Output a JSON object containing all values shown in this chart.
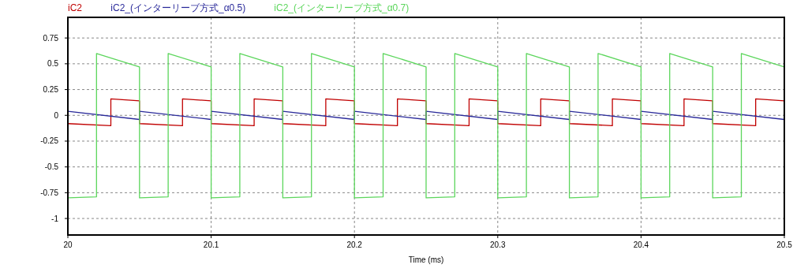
{
  "chart_data": {
    "type": "line",
    "xlabel": "Time (ms)",
    "xlim": [
      20,
      20.5
    ],
    "xticks": [
      20,
      20.1,
      20.2,
      20.3,
      20.4,
      20.5
    ],
    "ylim": [
      -1.16,
      0.95
    ],
    "yticks": [
      0.75,
      0.5,
      0.25,
      0,
      -0.25,
      -0.5,
      -0.75,
      -1
    ],
    "grid": true,
    "legend": "top left",
    "series": [
      {
        "name": "iC2",
        "color": "#c00000",
        "x": [
          20,
          20.03,
          20.03,
          20.05,
          20.05,
          20.08,
          20.08,
          20.1,
          20.1,
          20.13,
          20.13,
          20.15,
          20.15,
          20.18,
          20.18,
          20.2,
          20.2,
          20.23,
          20.23,
          20.25,
          20.25,
          20.28,
          20.28,
          20.3,
          20.3,
          20.33,
          20.33,
          20.35,
          20.35,
          20.38,
          20.38,
          20.4,
          20.4,
          20.43,
          20.43,
          20.45,
          20.45,
          20.48,
          20.48,
          20.5
        ],
        "values": [
          -0.08,
          -0.1,
          0.16,
          0.14,
          -0.08,
          -0.1,
          0.16,
          0.14,
          -0.08,
          -0.1,
          0.16,
          0.14,
          -0.08,
          -0.1,
          0.16,
          0.14,
          -0.08,
          -0.1,
          0.16,
          0.14,
          -0.08,
          -0.1,
          0.16,
          0.14,
          -0.08,
          -0.1,
          0.16,
          0.14,
          -0.08,
          -0.1,
          0.16,
          0.14,
          -0.08,
          -0.1,
          0.16,
          0.14,
          -0.08,
          -0.1,
          0.16,
          0.14
        ]
      },
      {
        "name": "iC2_(インターリーブ方式_α0.5)",
        "color": "#2a2a9a",
        "x": [
          20,
          20.05,
          20.05,
          20.1,
          20.1,
          20.15,
          20.15,
          20.2,
          20.2,
          20.25,
          20.25,
          20.3,
          20.3,
          20.35,
          20.35,
          20.4,
          20.4,
          20.45,
          20.45,
          20.5
        ],
        "values": [
          0.04,
          -0.04,
          0.04,
          -0.04,
          0.04,
          -0.04,
          0.04,
          -0.04,
          0.04,
          -0.04,
          0.04,
          -0.04,
          0.04,
          -0.04,
          0.04,
          -0.04,
          0.04,
          -0.04,
          0.04,
          -0.04
        ]
      },
      {
        "name": "iC2_(インターリーブ方式_α0.7)",
        "color": "#5cd65c",
        "x": [
          20,
          20.02,
          20.02,
          20.05,
          20.05,
          20.07,
          20.07,
          20.1,
          20.1,
          20.12,
          20.12,
          20.15,
          20.15,
          20.17,
          20.17,
          20.2,
          20.2,
          20.22,
          20.22,
          20.25,
          20.25,
          20.27,
          20.27,
          20.3,
          20.3,
          20.32,
          20.32,
          20.35,
          20.35,
          20.37,
          20.37,
          20.4,
          20.4,
          20.42,
          20.42,
          20.45,
          20.45,
          20.47,
          20.47,
          20.5
        ],
        "values": [
          -0.8,
          -0.79,
          0.6,
          0.47,
          -0.8,
          -0.79,
          0.6,
          0.47,
          -0.8,
          -0.79,
          0.6,
          0.47,
          -0.8,
          -0.79,
          0.6,
          0.47,
          -0.8,
          -0.79,
          0.6,
          0.47,
          -0.8,
          -0.79,
          0.6,
          0.47,
          -0.8,
          -0.79,
          0.6,
          0.47,
          -0.8,
          -0.79,
          0.6,
          0.47,
          -0.8,
          -0.79,
          0.6,
          0.47,
          -0.8,
          -0.79,
          0.6,
          0.47
        ]
      }
    ]
  }
}
